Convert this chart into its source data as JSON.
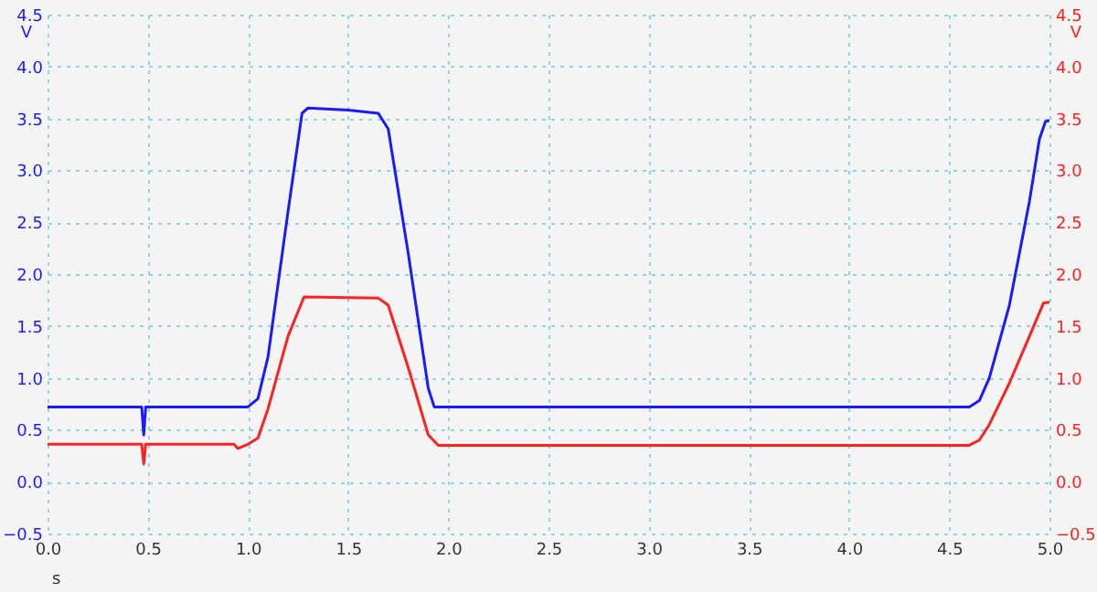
{
  "chart_data": {
    "type": "line",
    "xlabel": "s",
    "ylabel": "V",
    "y2label": "V",
    "xlim": [
      0,
      5
    ],
    "xticks": [
      {
        "value": 0,
        "label": "0.0"
      },
      0.5,
      {
        "value": 1,
        "label": "1.0"
      },
      1.5,
      {
        "value": 2,
        "label": "2.0"
      },
      2.5,
      {
        "value": 3,
        "label": "3.0"
      },
      3.5,
      {
        "value": 4,
        "label": "4.0"
      },
      4.5,
      {
        "value": 5,
        "label": "5.0"
      }
    ],
    "ylim": [
      -0.5,
      4.5
    ],
    "yticks": [
      -0.5,
      {
        "value": 0,
        "label": "0.0"
      },
      0.5,
      {
        "value": 1,
        "label": "1.0"
      },
      1.5,
      {
        "value": 2,
        "label": "2.0"
      },
      2.5,
      {
        "value": 3,
        "label": "3.0"
      },
      3.5,
      {
        "value": 4,
        "label": "4.0"
      },
      4.5
    ],
    "y2lim": [
      -0.5,
      4.5
    ],
    "y2ticks": [
      -0.5,
      {
        "value": 0,
        "label": "0.0"
      },
      0.5,
      {
        "value": 1,
        "label": "1.0"
      },
      1.5,
      {
        "value": 2,
        "label": "2.0"
      },
      2.5,
      {
        "value": 3,
        "label": "3.0"
      },
      3.5,
      {
        "value": 4,
        "label": "4.0"
      },
      4.5
    ],
    "grid": true,
    "line_style": "solid",
    "marker": "none",
    "series": [
      {
        "color": "#1a1aff",
        "x": [
          0,
          0.47,
          0.48,
          0.49,
          1.0,
          1.05,
          1.1,
          1.2,
          1.27,
          1.3,
          1.5,
          1.65,
          1.7,
          1.8,
          1.9,
          1.93,
          4.6,
          4.65,
          4.7,
          4.8,
          4.9,
          4.95,
          4.98,
          5.0
        ],
        "values": [
          0.72,
          0.72,
          0.45,
          0.72,
          0.72,
          0.8,
          1.2,
          2.6,
          3.55,
          3.6,
          3.58,
          3.55,
          3.4,
          2.2,
          0.9,
          0.72,
          0.72,
          0.78,
          1.0,
          1.7,
          2.7,
          3.3,
          3.47,
          3.48
        ]
      },
      {
        "color": "#ff2020",
        "axis": "y2",
        "x": [
          0,
          0.47,
          0.48,
          0.49,
          0.93,
          0.95,
          1.0,
          1.05,
          1.1,
          1.2,
          1.28,
          1.65,
          1.7,
          1.8,
          1.9,
          1.95,
          4.6,
          4.65,
          4.7,
          4.8,
          4.9,
          4.97,
          5.0
        ],
        "values": [
          0.36,
          0.36,
          0.17,
          0.36,
          0.36,
          0.32,
          0.36,
          0.42,
          0.7,
          1.4,
          1.78,
          1.77,
          1.7,
          1.1,
          0.45,
          0.35,
          0.35,
          0.4,
          0.55,
          0.95,
          1.4,
          1.72,
          1.73
        ]
      }
    ]
  }
}
